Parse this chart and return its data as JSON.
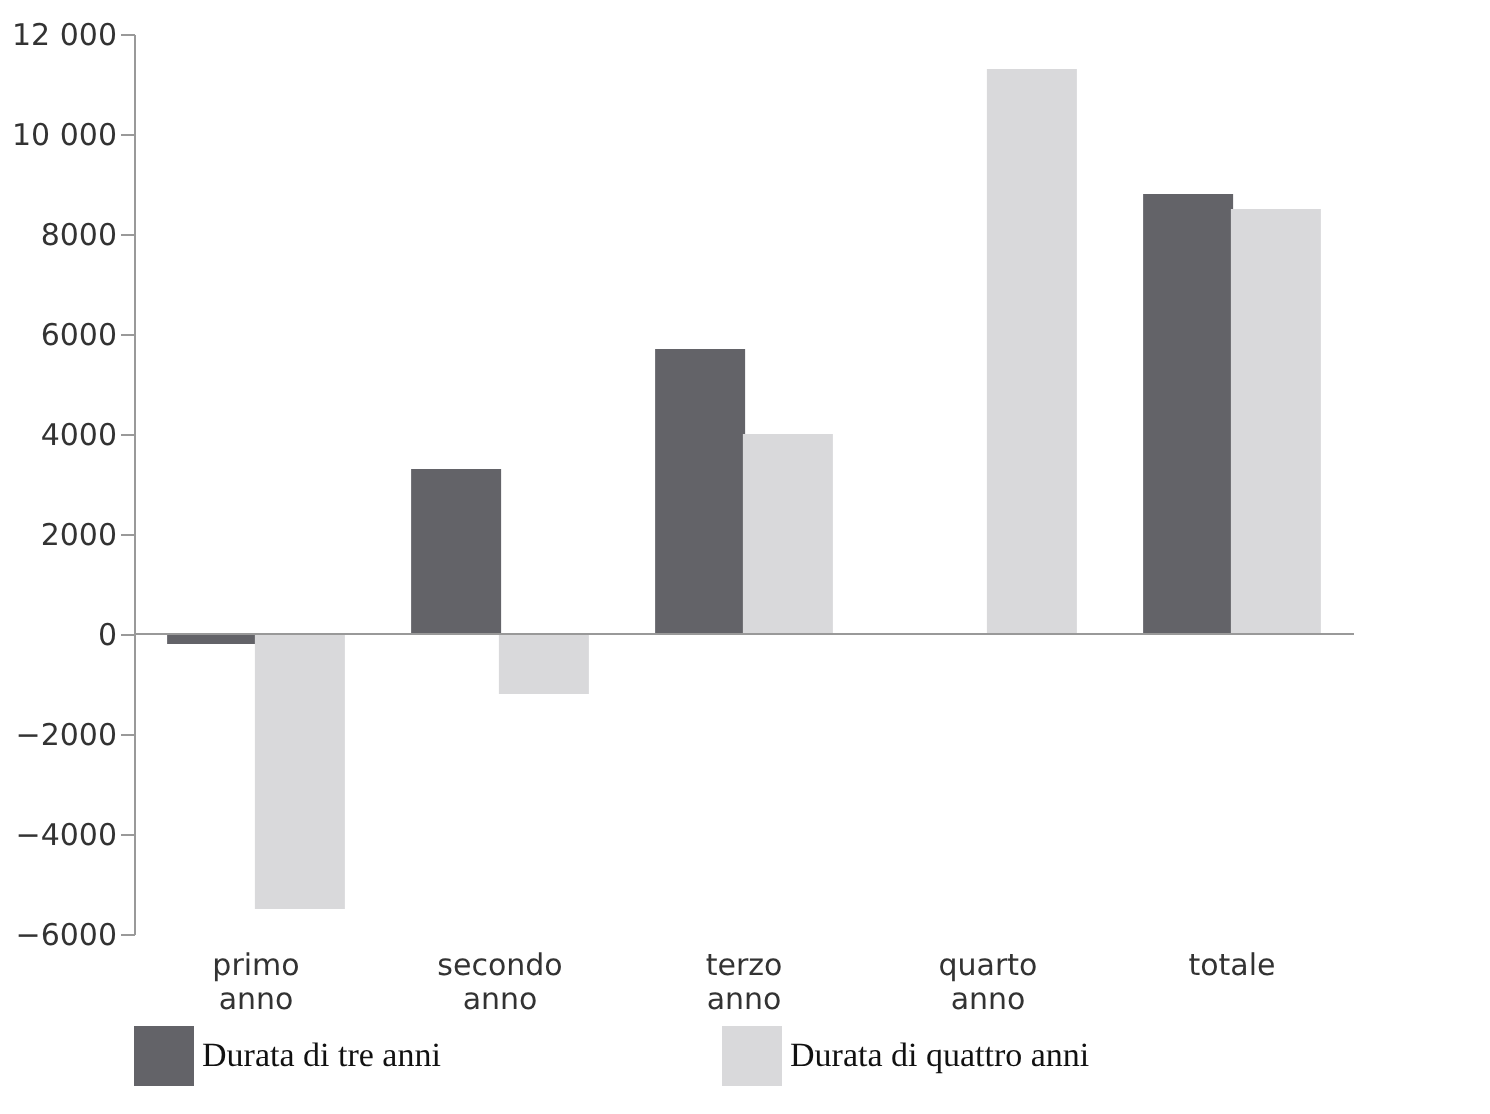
{
  "chart_data": {
    "type": "bar",
    "categories": [
      "primo anno",
      "secondo anno",
      "terzo anno",
      "quarto anno",
      "totale"
    ],
    "series": [
      {
        "name": "Durata di tre anni",
        "color": "#636368",
        "values": [
          -200,
          3300,
          5700,
          null,
          8800
        ]
      },
      {
        "name": "Durata di quattro anni",
        "color": "#d9d9db",
        "values": [
          -5500,
          -1200,
          4000,
          11300,
          8500
        ]
      }
    ],
    "ylim": [
      -6000,
      12000
    ],
    "yticks": [
      {
        "value": -6000,
        "label": "−6000"
      },
      {
        "value": -4000,
        "label": "−4000"
      },
      {
        "value": -2000,
        "label": "−2000"
      },
      0,
      2000,
      4000,
      6000,
      8000,
      {
        "value": 10000,
        "label": "10 000"
      },
      {
        "value": 12000,
        "label": "12 000"
      }
    ],
    "ref_lines": [
      {
        "axis": "y",
        "value": 0,
        "color": "#999999"
      }
    ],
    "grid": false,
    "legend": "bottom"
  }
}
